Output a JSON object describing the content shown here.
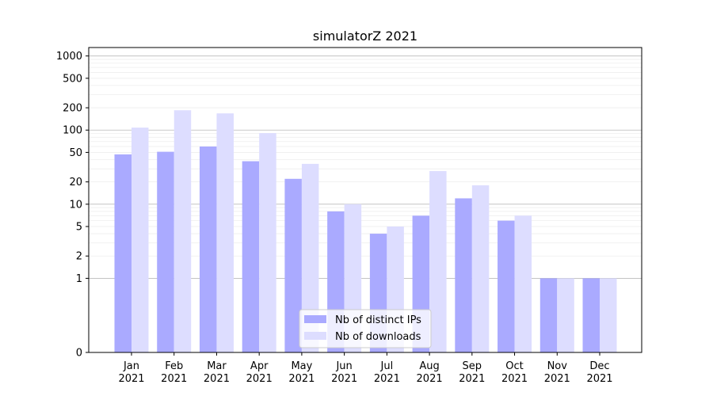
{
  "chart_data": {
    "type": "bar",
    "scale": "symlog",
    "title": "simulatorZ 2021",
    "xlabel": "",
    "ylabel": "",
    "ylim": [
      0,
      1300
    ],
    "grid": true,
    "legend_position": "lower-center",
    "categories": [
      "Jan\n2021",
      "Feb\n2021",
      "Mar\n2021",
      "Apr\n2021",
      "May\n2021",
      "Jun\n2021",
      "Jul\n2021",
      "Aug\n2021",
      "Sep\n2021",
      "Oct\n2021",
      "Nov\n2021",
      "Dec\n2021"
    ],
    "y_ticks": [
      0,
      1,
      2,
      5,
      10,
      20,
      50,
      100,
      200,
      500,
      1000
    ],
    "series": [
      {
        "name": "Nb of distinct IPs",
        "color": "#aaaaff",
        "values": [
          47,
          51,
          60,
          38,
          22,
          8,
          4,
          7,
          12,
          6,
          1,
          1
        ]
      },
      {
        "name": "Nb of downloads",
        "color": "#ddddff",
        "values": [
          108,
          185,
          168,
          91,
          35,
          10,
          5,
          28,
          18,
          7,
          1,
          1
        ]
      }
    ]
  }
}
